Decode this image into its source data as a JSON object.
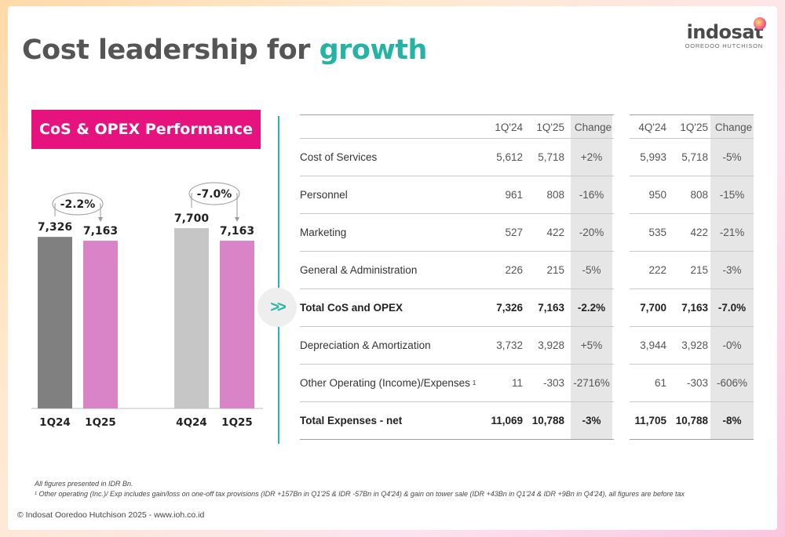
{
  "header": {
    "title_main": "Cost leadership for ",
    "title_accent": "growth",
    "logo_name": "indosat",
    "logo_sub": "OOREDOO HUTCHISON"
  },
  "chart_panel": {
    "pill_label": "CoS & OPEX Performance"
  },
  "chart_data": {
    "type": "bar",
    "groups": [
      {
        "categories": [
          "1Q24",
          "1Q25"
        ],
        "values": [
          7326,
          7163
        ],
        "value_labels": [
          "7,326",
          "7,163"
        ],
        "colors": [
          "#808080",
          "#d884c6"
        ],
        "change_label": "-2.2%"
      },
      {
        "categories": [
          "4Q24",
          "1Q25"
        ],
        "values": [
          7700,
          7163
        ],
        "value_labels": [
          "7,700",
          "7,163"
        ],
        "colors": [
          "#c6c6c6",
          "#d884c6"
        ],
        "change_label": "-7.0%"
      }
    ],
    "ylim": [
      0,
      7700
    ]
  },
  "table": {
    "headers": [
      "1Q'24",
      "1Q'25",
      "Change",
      "4Q'24",
      "1Q'25",
      "Change"
    ],
    "rows": [
      {
        "label": "Cost of Services",
        "footnote": "",
        "bold": false,
        "values": [
          "5,612",
          "5,718",
          "+2%",
          "5,993",
          "5,718",
          "-5%"
        ]
      },
      {
        "label": "Personnel",
        "footnote": "",
        "bold": false,
        "values": [
          "961",
          "808",
          "-16%",
          "950",
          "808",
          "-15%"
        ]
      },
      {
        "label": "Marketing",
        "footnote": "",
        "bold": false,
        "values": [
          "527",
          "422",
          "-20%",
          "535",
          "422",
          "-21%"
        ]
      },
      {
        "label": "General & Administration",
        "footnote": "",
        "bold": false,
        "values": [
          "226",
          "215",
          "-5%",
          "222",
          "215",
          "-3%"
        ]
      },
      {
        "label": "Total CoS and OPEX",
        "footnote": "",
        "bold": true,
        "values": [
          "7,326",
          "7,163",
          "-2.2%",
          "7,700",
          "7,163",
          "-7.0%"
        ]
      },
      {
        "label": "Depreciation & Amortization",
        "footnote": "",
        "bold": false,
        "values": [
          "3,732",
          "3,928",
          "+5%",
          "3,944",
          "3,928",
          "-0%"
        ]
      },
      {
        "label": "Other Operating (Income)/Expenses",
        "footnote": "1",
        "bold": false,
        "values": [
          "11",
          "-303",
          "-2716%",
          "61",
          "-303",
          "-606%"
        ]
      },
      {
        "label": "Total Expenses - net",
        "footnote": "",
        "bold": true,
        "values": [
          "11,069",
          "10,788",
          "-3%",
          "11,705",
          "10,788",
          "-8%"
        ]
      }
    ]
  },
  "footnotes": {
    "line1": "All figures presented in IDR Bn.",
    "line2": "¹ Other operating (Inc.)/ Exp includes gain/loss on one-off tax provisions (IDR +157Bn in Q1'25 & IDR -57Bn in Q4'24) & gain on tower sale (IDR +43Bn in Q1'24 & IDR +9Bn in Q4'24), all figures are before tax",
    "copyright": "© Indosat Ooredoo Hutchison 2025 - www.ioh.co.id"
  }
}
